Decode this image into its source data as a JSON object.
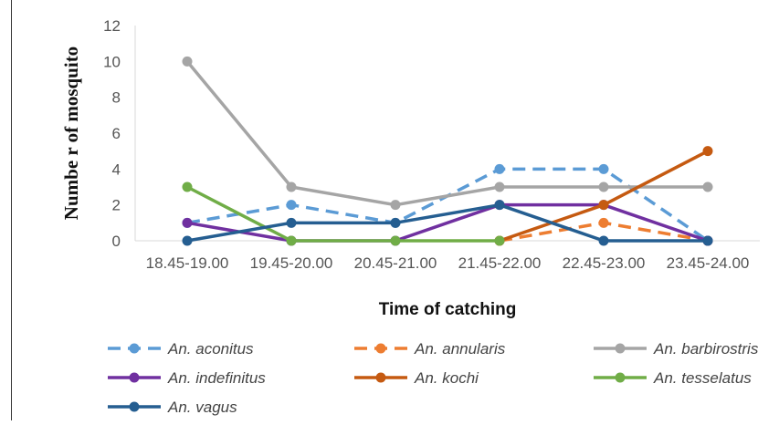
{
  "chart_data": {
    "type": "line",
    "title": "",
    "xlabel": "Time of catching",
    "ylabel": "Numbe r of mosquito",
    "categories": [
      "18.45-19.00",
      "19.45-20.00",
      "20.45-21.00",
      "21.45-22.00",
      "22.45-23.00",
      "23.45-24.00"
    ],
    "ylim": [
      0,
      12
    ],
    "yticks": [
      "0",
      "2",
      "4",
      "6",
      "8",
      "10",
      "12"
    ],
    "grid": false,
    "legend_position": "bottom",
    "series": [
      {
        "name": "An. aconitus",
        "values": [
          1,
          2,
          1,
          4,
          4,
          0
        ],
        "color": "#5b9bd5",
        "dashed": true
      },
      {
        "name": "An. annularis",
        "values": [
          null,
          null,
          null,
          0,
          1,
          0
        ],
        "color": "#ed7d31",
        "dashed": true
      },
      {
        "name": "An. barbirostris",
        "values": [
          10,
          3,
          2,
          3,
          3,
          3
        ],
        "color": "#a5a5a5",
        "dashed": false
      },
      {
        "name": "An. indefinitus",
        "values": [
          1,
          0,
          0,
          2,
          2,
          0
        ],
        "color": "#7030a0",
        "dashed": false
      },
      {
        "name": "An. kochi",
        "values": [
          null,
          null,
          null,
          0,
          2,
          5
        ],
        "color": "#c55a11",
        "dashed": false
      },
      {
        "name": "An. tesselatus",
        "values": [
          3,
          0,
          0,
          0,
          null,
          null
        ],
        "color": "#70ad47",
        "dashed": false
      },
      {
        "name": "An. vagus",
        "values": [
          0,
          1,
          1,
          2,
          0,
          0
        ],
        "color": "#255e91",
        "dashed": false
      }
    ]
  }
}
